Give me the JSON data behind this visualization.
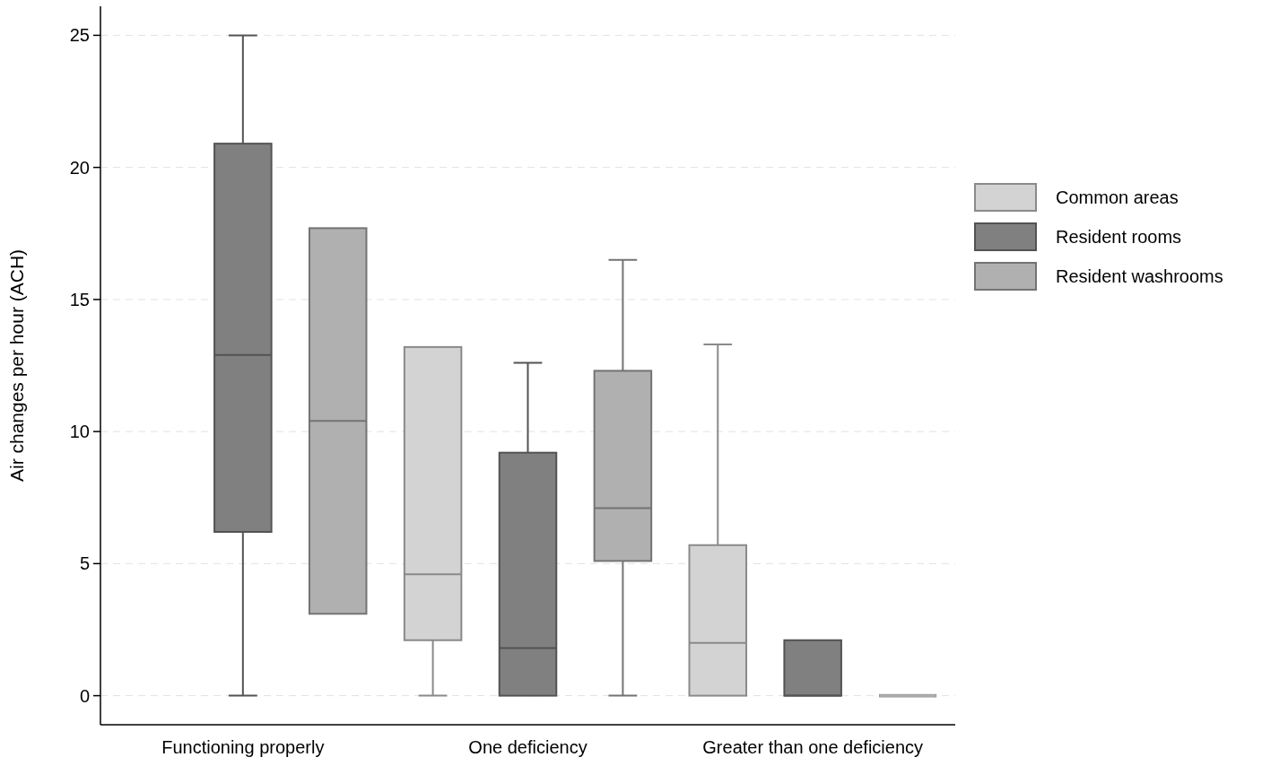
{
  "chart_data": {
    "type": "box",
    "ylabel": "Air changes per hour (ACH)",
    "categories": [
      "Functioning properly",
      "One deficiency",
      "Greater than one deficiency"
    ],
    "ylim": [
      -1.1,
      26.1
    ],
    "yticks": [
      0,
      5,
      10,
      15,
      20,
      25
    ],
    "grid": "y",
    "legend": "right",
    "series": [
      {
        "name": "Common areas",
        "color": "#d3d3d3",
        "boxes": [
          null,
          {
            "low": 0,
            "q1": 2.1,
            "median": 4.6,
            "q3": 13.2,
            "high": 13.2
          },
          {
            "low": 0,
            "q1": 0,
            "median": 2.0,
            "q3": 5.7,
            "high": 13.3
          }
        ]
      },
      {
        "name": "Resident rooms",
        "color": "#808080",
        "boxes": [
          {
            "low": 0,
            "q1": 6.2,
            "median": 12.9,
            "q3": 20.9,
            "high": 25
          },
          {
            "low": 0,
            "q1": 0,
            "median": 1.8,
            "q3": 9.2,
            "high": 12.6
          },
          {
            "low": 0,
            "q1": 0,
            "median": 0,
            "q3": 2.1,
            "high": 2.1
          }
        ]
      },
      {
        "name": "Resident washrooms",
        "color": "#b0b0b0",
        "boxes": [
          {
            "low": 3.1,
            "q1": 3.1,
            "median": 10.4,
            "q3": 17.7,
            "high": 17.7
          },
          {
            "low": 0,
            "q1": 5.1,
            "median": 7.1,
            "q3": 12.3,
            "high": 16.5
          },
          {
            "low": 0,
            "q1": 0,
            "median": 0,
            "q3": 0,
            "high": 0
          }
        ]
      }
    ]
  }
}
